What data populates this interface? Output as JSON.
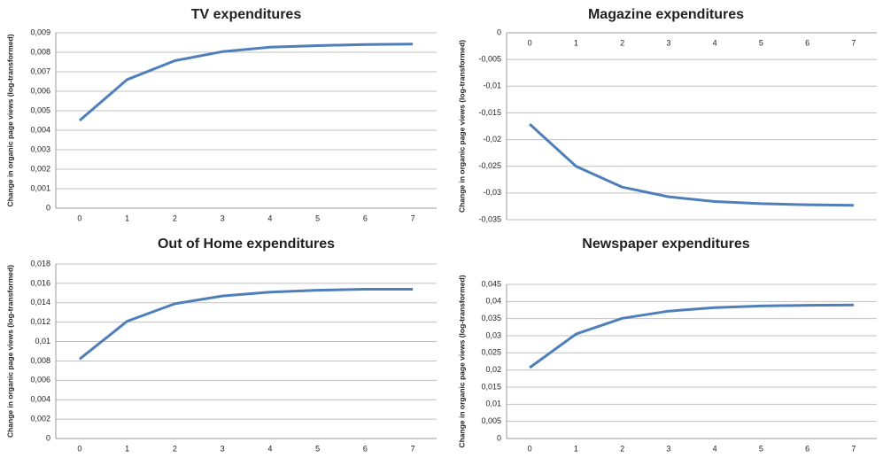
{
  "chart_data": [
    {
      "type": "line",
      "title": "TV expenditures",
      "y_label": "Change in organic page views (log-transformed)",
      "categories": [
        "0",
        "1",
        "2",
        "3",
        "4",
        "5",
        "6",
        "7"
      ],
      "series": [
        {
          "name": "TV",
          "color": "#4f7fba",
          "values": [
            0.0045,
            0.0066,
            0.00757,
            0.00803,
            0.00826,
            0.00834,
            0.0084,
            0.00842
          ]
        }
      ],
      "ylim": [
        0,
        0.009
      ],
      "grid": true,
      "yticks": [
        0,
        {
          "value": 0.001,
          "label": "0,001"
        },
        {
          "value": 0.002,
          "label": "0,002"
        },
        {
          "value": 0.003,
          "label": "0,003"
        },
        {
          "value": 0.004,
          "label": "0,004"
        },
        {
          "value": 0.005,
          "label": "0,005"
        },
        {
          "value": 0.006,
          "label": "0,006"
        },
        {
          "value": 0.007,
          "label": "0,007"
        },
        {
          "value": 0.008,
          "label": "0,008"
        },
        {
          "value": 0.009,
          "label": "0,009"
        }
      ]
    },
    {
      "type": "line",
      "title": "Magazine expenditures",
      "y_label": "Change in organic page views (log-transformed)",
      "categories": [
        "0",
        "1",
        "2",
        "3",
        "4",
        "5",
        "6",
        "7"
      ],
      "series": [
        {
          "name": "Magazine",
          "color": "#4f7fba",
          "values": [
            -0.0171,
            -0.025,
            -0.0289,
            -0.0307,
            -0.0316,
            -0.032,
            -0.0322,
            -0.0323
          ]
        }
      ],
      "ylim": [
        -0.035,
        0
      ],
      "grid": true,
      "yticks": [
        0,
        {
          "value": -0.005,
          "label": "-0,005"
        },
        {
          "value": -0.01,
          "label": "-0,01"
        },
        {
          "value": -0.015,
          "label": "-0,015"
        },
        {
          "value": -0.02,
          "label": "-0,02"
        },
        {
          "value": -0.025,
          "label": "-0,025"
        },
        {
          "value": -0.03,
          "label": "-0,03"
        },
        {
          "value": -0.035,
          "label": "-0,035"
        }
      ]
    },
    {
      "type": "line",
      "title": "Out of Home expenditures",
      "y_label": "Change in organic page views (log-transformed)",
      "categories": [
        "0",
        "1",
        "2",
        "3",
        "4",
        "5",
        "6",
        "7"
      ],
      "series": [
        {
          "name": "Out of Home",
          "color": "#4f7fba",
          "values": [
            0.0082,
            0.0121,
            0.0139,
            0.0147,
            0.0151,
            0.0153,
            0.0154,
            0.0154
          ]
        }
      ],
      "ylim": [
        0,
        0.018
      ],
      "grid": true,
      "yticks": [
        0,
        {
          "value": 0.002,
          "label": "0,002"
        },
        {
          "value": 0.004,
          "label": "0,004"
        },
        {
          "value": 0.006,
          "label": "0,006"
        },
        {
          "value": 0.008,
          "label": "0,008"
        },
        {
          "value": 0.01,
          "label": "0,01"
        },
        {
          "value": 0.012,
          "label": "0,012"
        },
        {
          "value": 0.014,
          "label": "0,014"
        },
        {
          "value": 0.016,
          "label": "0,016"
        },
        {
          "value": 0.018,
          "label": "0,018"
        }
      ]
    },
    {
      "type": "line",
      "title": "Newspaper expenditures",
      "y_label": "Change in organic page views (log-transformed)",
      "categories": [
        "0",
        "1",
        "2",
        "3",
        "4",
        "5",
        "6",
        "7"
      ],
      "series": [
        {
          "name": "Newspaper",
          "color": "#4f7fba",
          "values": [
            0.0207,
            0.0305,
            0.0351,
            0.0372,
            0.0382,
            0.0387,
            0.0389,
            0.039
          ]
        }
      ],
      "ylim": [
        0,
        0.045
      ],
      "grid": true,
      "yticks": [
        0,
        {
          "value": 0.005,
          "label": "0,005"
        },
        {
          "value": 0.01,
          "label": "0,01"
        },
        {
          "value": 0.015,
          "label": "0,015"
        },
        {
          "value": 0.02,
          "label": "0,02"
        },
        {
          "value": 0.025,
          "label": "0,025"
        },
        {
          "value": 0.03,
          "label": "0,03"
        },
        {
          "value": 0.035,
          "label": "0,035"
        },
        {
          "value": 0.04,
          "label": "0,04"
        },
        {
          "value": 0.045,
          "label": "0,045"
        }
      ]
    }
  ]
}
